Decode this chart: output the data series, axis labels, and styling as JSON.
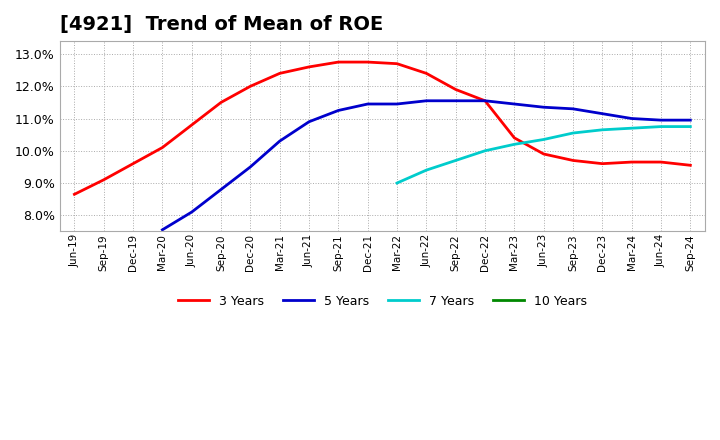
{
  "title": "[4921]  Trend of Mean of ROE",
  "title_fontsize": 14,
  "background_color": "#ffffff",
  "grid_color": "#aaaaaa",
  "ylim": [
    0.075,
    0.134
  ],
  "yticks": [
    0.08,
    0.09,
    0.1,
    0.11,
    0.12,
    0.13
  ],
  "x_tick_labels": [
    "Jun-19",
    "Sep-19",
    "Dec-19",
    "Mar-20",
    "Jun-20",
    "Sep-20",
    "Dec-20",
    "Mar-21",
    "Jun-21",
    "Sep-21",
    "Dec-21",
    "Mar-22",
    "Jun-22",
    "Sep-22",
    "Dec-22",
    "Mar-23",
    "Jun-23",
    "Sep-23",
    "Dec-23",
    "Mar-24",
    "Jun-24",
    "Sep-24"
  ],
  "series": {
    "3 Years": {
      "color": "#ff0000",
      "dates": [
        "Jun-19",
        "Sep-19",
        "Dec-19",
        "Mar-20",
        "Jun-20",
        "Sep-20",
        "Dec-20",
        "Mar-21",
        "Jun-21",
        "Sep-21",
        "Dec-21",
        "Mar-22",
        "Jun-22",
        "Sep-22",
        "Dec-22",
        "Mar-23",
        "Jun-23",
        "Sep-23",
        "Dec-23",
        "Mar-24",
        "Jun-24",
        "Sep-24"
      ],
      "values": [
        0.0865,
        0.091,
        0.096,
        0.101,
        0.108,
        0.115,
        0.12,
        0.124,
        0.126,
        0.1275,
        0.1275,
        0.127,
        0.124,
        0.119,
        0.1155,
        0.104,
        0.099,
        0.097,
        0.096,
        0.0965,
        0.0965,
        0.0955
      ]
    },
    "5 Years": {
      "color": "#0000cc",
      "dates": [
        "Mar-20",
        "Jun-20",
        "Sep-20",
        "Dec-20",
        "Mar-21",
        "Jun-21",
        "Sep-21",
        "Dec-21",
        "Mar-22",
        "Jun-22",
        "Sep-22",
        "Dec-22",
        "Mar-23",
        "Jun-23",
        "Sep-23",
        "Dec-23",
        "Mar-24",
        "Jun-24",
        "Sep-24"
      ],
      "values": [
        0.0755,
        0.081,
        0.088,
        0.095,
        0.103,
        0.109,
        0.1125,
        0.1145,
        0.1145,
        0.1155,
        0.1155,
        0.1155,
        0.1145,
        0.1135,
        0.113,
        0.1115,
        0.11,
        0.1095,
        0.1095
      ]
    },
    "7 Years": {
      "color": "#00cccc",
      "dates": [
        "Mar-22",
        "Jun-22",
        "Sep-22",
        "Dec-22",
        "Mar-23",
        "Jun-23",
        "Sep-23",
        "Dec-23",
        "Mar-24",
        "Jun-24",
        "Sep-24"
      ],
      "values": [
        0.09,
        0.094,
        0.097,
        0.1,
        0.102,
        0.1035,
        0.1055,
        0.1065,
        0.107,
        0.1075,
        0.1075
      ]
    },
    "10 Years": {
      "color": "#008800",
      "dates": [],
      "values": []
    }
  },
  "legend_labels": [
    "3 Years",
    "5 Years",
    "7 Years",
    "10 Years"
  ],
  "legend_colors": [
    "#ff0000",
    "#0000cc",
    "#00cccc",
    "#008800"
  ]
}
